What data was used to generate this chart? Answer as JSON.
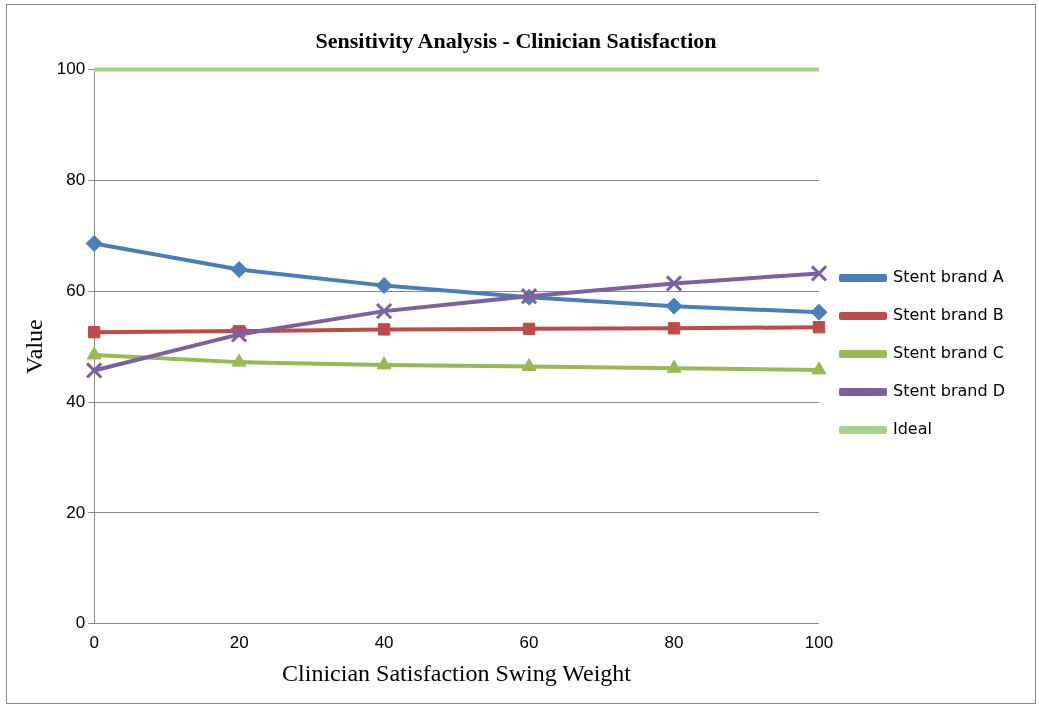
{
  "chart_data": {
    "type": "line",
    "title": "Sensitivity Analysis - Clinician Satisfaction",
    "xlabel": "Clinician Satisfaction Swing Weight",
    "ylabel": "Value",
    "x": [
      0,
      20,
      40,
      60,
      80,
      100
    ],
    "series": [
      {
        "name": "Stent brand A",
        "color": "#4a7ebb",
        "marker": "diamond",
        "values": [
          68.6,
          63.9,
          61.0,
          58.9,
          57.3,
          56.2
        ]
      },
      {
        "name": "Stent brand B",
        "color": "#be4b48",
        "marker": "square",
        "values": [
          52.6,
          52.8,
          53.1,
          53.2,
          53.3,
          53.5
        ]
      },
      {
        "name": "Stent brand C",
        "color": "#98b954",
        "marker": "triangle",
        "values": [
          48.5,
          47.2,
          46.7,
          46.4,
          46.1,
          45.8
        ]
      },
      {
        "name": "Stent brand D",
        "color": "#7d60a0",
        "marker": "cross",
        "values": [
          45.7,
          52.2,
          56.4,
          59.1,
          61.4,
          63.2
        ]
      },
      {
        "name": "Ideal",
        "color": "#a9d18e",
        "marker": "none",
        "values": [
          100,
          100,
          100,
          100,
          100,
          100
        ]
      }
    ],
    "xlim": [
      0,
      100
    ],
    "xticks": [
      0,
      20,
      40,
      60,
      80,
      100
    ],
    "ylim": [
      0,
      100
    ],
    "yticks": [
      0,
      20,
      40,
      60,
      80,
      100
    ],
    "grid": "y",
    "legend": "right",
    "line_style": "solid"
  }
}
